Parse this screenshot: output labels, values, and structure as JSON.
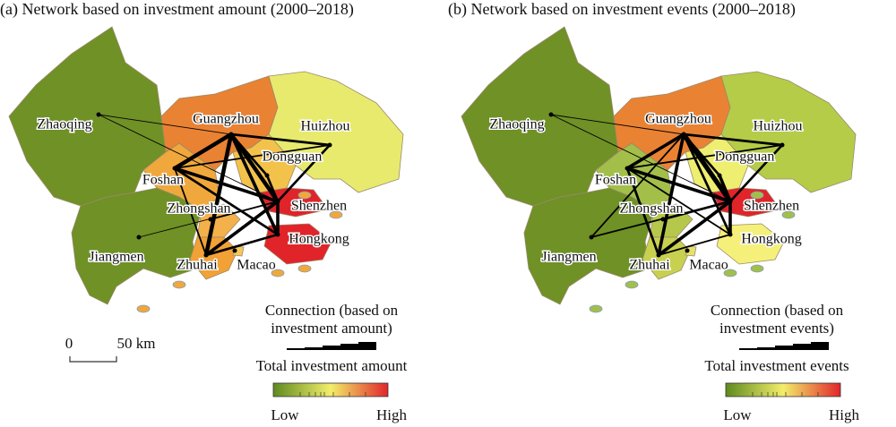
{
  "panels": [
    {
      "title": "(a) Network based on investment amount (2000–2018)",
      "cities": [
        "Zhaoqing",
        "Guangzhou",
        "Huizhou",
        "Dongguan",
        "Foshan",
        "Zhongshan",
        "Shenzhen",
        "Jiangmen",
        "Hongkong",
        "Zhuhai",
        "Macao"
      ],
      "connection_legend": [
        "Connection (based on",
        "investment amount)"
      ],
      "fill_legend": "Total investment amount",
      "low": "Low",
      "high": "High"
    },
    {
      "title": "(b) Network based on investment events (2000–2018)",
      "cities": [
        "Zhaoqing",
        "Guangzhou",
        "Huizhou",
        "Dongguan",
        "Foshan",
        "Zhongshan",
        "Shenzhen",
        "Jiangmen",
        "Hongkong",
        "Zhuhai",
        "Macao"
      ],
      "connection_legend": [
        "Connection (based on",
        "investment events)"
      ],
      "fill_legend": "Total investment events",
      "low": "Low",
      "high": "High"
    }
  ],
  "scale_bar": {
    "zero": "0",
    "length": "50 km"
  }
}
